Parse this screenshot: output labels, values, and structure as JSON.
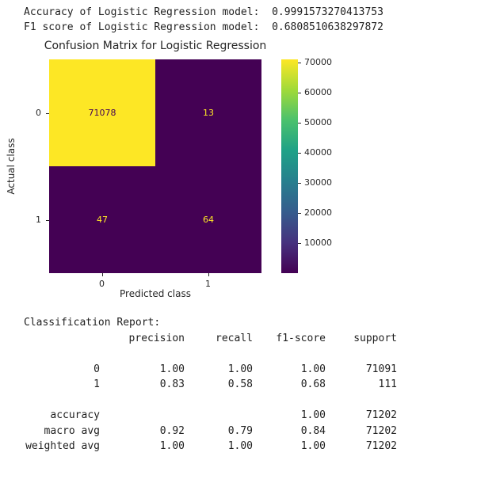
{
  "console": {
    "accuracy_line": "Accuracy of Logistic Regression model:  0.9991573270413753",
    "f1_line": "F1 score of Logistic Regression model:  0.6808510638297872"
  },
  "chart_data": {
    "type": "heatmap",
    "title": "Confusion Matrix for Logistic Regression",
    "xlabel": "Predicted class",
    "ylabel": "Actual class",
    "x_ticklabels": [
      "0",
      "1"
    ],
    "y_ticklabels": [
      "0",
      "1"
    ],
    "values": [
      [
        71078,
        13
      ],
      [
        47,
        64
      ]
    ],
    "vmin": 13,
    "vmax": 71078,
    "colormap": "viridis",
    "colorbar_ticks": [
      10000,
      20000,
      30000,
      40000,
      50000,
      60000,
      70000
    ],
    "legend_position": "right-colorbar",
    "grid": false,
    "cell_text_color_low": "#fde725",
    "cell_text_color_high": "#440154"
  },
  "report": {
    "heading": "Classification Report:",
    "columns": [
      "precision",
      "recall",
      "f1-score",
      "support"
    ],
    "rows": [
      {
        "label": "0",
        "precision": "1.00",
        "recall": "1.00",
        "f1": "1.00",
        "support": "71091"
      },
      {
        "label": "1",
        "precision": "0.83",
        "recall": "0.58",
        "f1": "0.68",
        "support": "111"
      }
    ],
    "summary": [
      {
        "label": "accuracy",
        "precision": "",
        "recall": "",
        "f1": "1.00",
        "support": "71202"
      },
      {
        "label": "macro avg",
        "precision": "0.92",
        "recall": "0.79",
        "f1": "0.84",
        "support": "71202"
      },
      {
        "label": "weighted avg",
        "precision": "1.00",
        "recall": "1.00",
        "f1": "1.00",
        "support": "71202"
      }
    ]
  }
}
